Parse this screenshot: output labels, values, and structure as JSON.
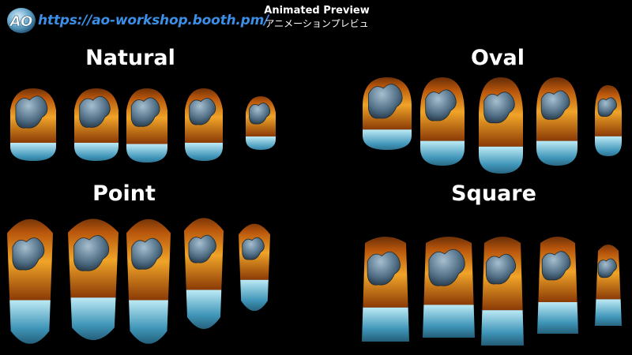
{
  "header": {
    "url": "https://ao-workshop.booth.pm/",
    "preview_title": "Animated Preview",
    "preview_subtitle": "アニメーションプレビュ",
    "logo_text": "AO"
  },
  "groups": [
    {
      "id": "natural",
      "title": "Natural",
      "shape": "natural"
    },
    {
      "id": "oval",
      "title": "Oval",
      "shape": "oval"
    },
    {
      "id": "point",
      "title": "Point",
      "shape": "point"
    },
    {
      "id": "square",
      "title": "Square",
      "shape": "square"
    }
  ],
  "colors": {
    "background": "#000000",
    "url": "#3c8ee6",
    "flame": "#e08a1a",
    "ice": "#6fc4e0",
    "claw": "#5a7890"
  }
}
